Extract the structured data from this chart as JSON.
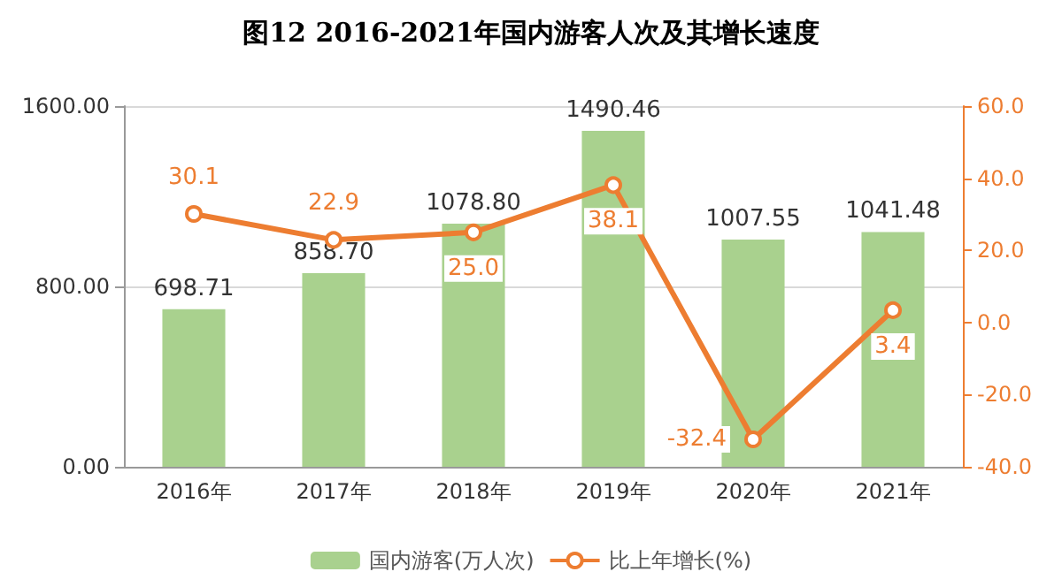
{
  "chart_data": {
    "type": "bar",
    "title": "图12 2016-2021年国内游客人次及其增长速度",
    "categories": [
      "2016年",
      "2017年",
      "2018年",
      "2019年",
      "2020年",
      "2021年"
    ],
    "series": [
      {
        "name": "国内游客(万人次)",
        "color": "#a9d18e",
        "values": [
          698.71,
          858.7,
          1078.8,
          1490.46,
          1007.55,
          1041.48
        ],
        "value_labels": [
          "698.71",
          "858.70",
          "1078.80",
          "1490.46",
          "1007.55",
          "1041.48"
        ]
      },
      {
        "name": "比上年增长(%)",
        "type": "line",
        "axis": "y2",
        "color": "#ed7d31",
        "marker": "circle",
        "values": [
          30.1,
          22.9,
          25.0,
          38.1,
          -32.4,
          3.4
        ],
        "value_labels": [
          "30.1",
          "22.9",
          "25.0",
          "38.1",
          "-32.4",
          "3.4"
        ]
      }
    ],
    "ylim": [
      0,
      1600
    ],
    "yticks": [
      {
        "value": 0,
        "label": "0.00"
      },
      {
        "value": 800,
        "label": "800.00"
      },
      {
        "value": 1600,
        "label": "1600.00"
      }
    ],
    "y2lim": [
      -40,
      60
    ],
    "y2ticks": [
      {
        "value": -40,
        "label": "-40.0"
      },
      {
        "value": -20,
        "label": "-20.0"
      },
      {
        "value": 0,
        "label": "0.0"
      },
      {
        "value": 20,
        "label": "20.0"
      },
      {
        "value": 40,
        "label": "40.0"
      },
      {
        "value": 60,
        "label": "60.0"
      }
    ],
    "grid": "y",
    "legend": "bottom"
  }
}
